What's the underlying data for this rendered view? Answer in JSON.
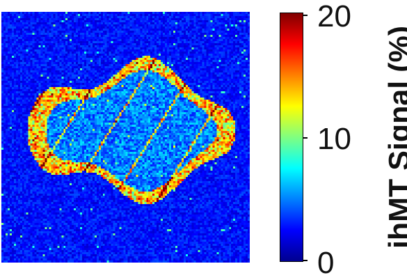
{
  "image": {
    "description_colormap": "jet",
    "background_level": 0.08,
    "noise_level": 0.12
  },
  "colorbar": {
    "label": "ihMT Signal (%)",
    "range": [
      0,
      20
    ],
    "ticks": [
      "0",
      "10",
      "20"
    ],
    "colormap": "jet"
  }
}
